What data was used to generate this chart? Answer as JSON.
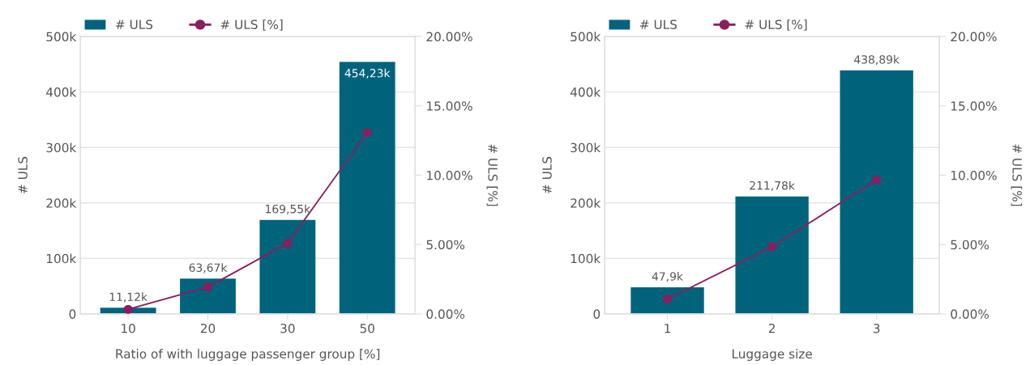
{
  "chart_data": [
    {
      "type": "bar",
      "xlabel": "Ratio of with luggage passenger group [%]",
      "ylabel": "# ULS",
      "y2label": "# ULS [%]",
      "categories": [
        "10",
        "20",
        "30",
        "50"
      ],
      "series": [
        {
          "name": "# ULS",
          "color": "#00637c",
          "values": [
            11120,
            63670,
            169550,
            454230
          ],
          "value_labels": [
            "11,12k",
            "63,67k",
            "169,55k",
            "454,23k"
          ]
        },
        {
          "name": "# ULS [%]",
          "type": "line",
          "axis": "y2",
          "color": "#8b1e5e",
          "marker": "circle",
          "values": [
            0.33,
            1.94,
            5.09,
            13.08
          ]
        }
      ],
      "ylim": [
        0,
        500000
      ],
      "yticks": [
        {
          "value": 0,
          "label": "0"
        },
        {
          "value": 100000,
          "label": "100k"
        },
        {
          "value": 200000,
          "label": "200k"
        },
        {
          "value": 300000,
          "label": "300k"
        },
        {
          "value": 400000,
          "label": "400k"
        },
        {
          "value": 500000,
          "label": "500k"
        }
      ],
      "y2lim": [
        0,
        20
      ],
      "y2ticks": [
        {
          "value": 0,
          "label": "0.00%"
        },
        {
          "value": 5,
          "label": "5.00%"
        },
        {
          "value": 10,
          "label": "10.00%"
        },
        {
          "value": 15,
          "label": "15.00%"
        },
        {
          "value": 20,
          "label": "20.00%"
        }
      ],
      "grid": "y",
      "legend": "top left"
    },
    {
      "type": "bar",
      "xlabel": "Luggage size",
      "ylabel": "# ULS",
      "y2label": "# ULS [%]",
      "categories": [
        "1",
        "2",
        "3"
      ],
      "series": [
        {
          "name": "# ULS",
          "color": "#00637c",
          "values": [
            47900,
            211780,
            438890
          ],
          "value_labels": [
            "47,9k",
            "211,78k",
            "438,89k"
          ]
        },
        {
          "name": "# ULS [%]",
          "type": "line",
          "axis": "y2",
          "color": "#8b1e5e",
          "marker": "circle",
          "values": [
            1.07,
            4.83,
            9.67
          ]
        }
      ],
      "ylim": [
        0,
        500000
      ],
      "yticks": [
        {
          "value": 0,
          "label": "0"
        },
        {
          "value": 100000,
          "label": "100k"
        },
        {
          "value": 200000,
          "label": "200k"
        },
        {
          "value": 300000,
          "label": "300k"
        },
        {
          "value": 400000,
          "label": "400k"
        },
        {
          "value": 500000,
          "label": "500k"
        }
      ],
      "y2lim": [
        0,
        20
      ],
      "y2ticks": [
        {
          "value": 0,
          "label": "0.00%"
        },
        {
          "value": 5,
          "label": "5.00%"
        },
        {
          "value": 10,
          "label": "10.00%"
        },
        {
          "value": 15,
          "label": "15.00%"
        },
        {
          "value": 20,
          "label": "20.00%"
        }
      ],
      "grid": "y",
      "legend": "top left"
    }
  ]
}
